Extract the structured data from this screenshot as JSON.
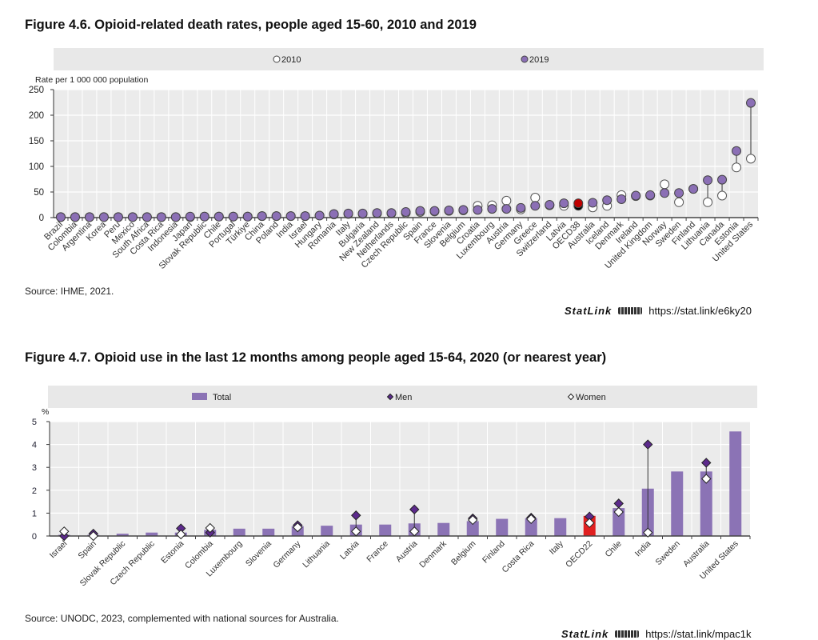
{
  "figure1": {
    "title": "Figure 4.6. Opioid-related death rates, people aged 15-60, 2010 and 2019",
    "source": "Source: IHME, 2021.",
    "statlink_label": "StatLink",
    "statlink_url": "https://stat.link/e6ky20"
  },
  "figure2": {
    "title": "Figure 4.7. Opioid use in the last 12 months among people aged 15-64, 2020 (or nearest year)",
    "source": "Source: UNODC, 2023, complemented with national sources for Australia.",
    "statlink_label": "StatLink",
    "statlink_url": "https://stat.link/mpac1k"
  },
  "chart_data": [
    {
      "type": "scatter",
      "ylabel": "Rate per 1 000 000 population",
      "ylim": [
        0,
        250
      ],
      "yticks": [
        0,
        50,
        100,
        150,
        200,
        250
      ],
      "grid": true,
      "legend_position": "top",
      "highlight": "OECD38",
      "colors": {
        "2010": "#ffffff",
        "2019": "#8b6fb5",
        "highlight_2019": "#c00000",
        "highlight_2010": "#000000"
      },
      "categories": [
        "Brazil",
        "Colombia",
        "Argentina",
        "Korea",
        "Peru",
        "Mexico",
        "South Africa",
        "Costa Rica",
        "Indonesia",
        "Japan",
        "Slovak Republic",
        "Chile",
        "Portugal",
        "Türkiye",
        "China",
        "Poland",
        "India",
        "Israel",
        "Hungary",
        "Romania",
        "Italy",
        "Bulgaria",
        "New Zealand",
        "Netherlands",
        "Czech Republic",
        "Spain",
        "France",
        "Slovenia",
        "Belgium",
        "Croatia",
        "Luxembourg",
        "Austria",
        "Germany",
        "Greece",
        "Switzerland",
        "Latvia",
        "OECD38",
        "Australia",
        "Iceland",
        "Denmark",
        "Ireland",
        "United Kingdom",
        "Norway",
        "Sweden",
        "Finland",
        "Lithuania",
        "Canada",
        "Estonia",
        "United States"
      ],
      "series": [
        {
          "name": "2010",
          "values": [
            1,
            1,
            1,
            1,
            1,
            1,
            1,
            1,
            1,
            1,
            2,
            2,
            2,
            2,
            3,
            3,
            3,
            3,
            4,
            6,
            7,
            7,
            8,
            8,
            9,
            11,
            12,
            13,
            14,
            23,
            24,
            33,
            16,
            39,
            24,
            23,
            23,
            20,
            23,
            44,
            42,
            43,
            65,
            30,
            56,
            30,
            43,
            98,
            115
          ]
        },
        {
          "name": "2019",
          "values": [
            1,
            1,
            1,
            1,
            1,
            1,
            1,
            1,
            1,
            2,
            2,
            2,
            2,
            2,
            3,
            3,
            3,
            3,
            4,
            7,
            8,
            8,
            9,
            9,
            11,
            13,
            13,
            14,
            15,
            15,
            17,
            17,
            19,
            23,
            25,
            28,
            28,
            29,
            34,
            36,
            43,
            44,
            48,
            48,
            56,
            73,
            74,
            130,
            224
          ]
        }
      ]
    },
    {
      "type": "bar",
      "ylabel": "%",
      "ylim": [
        0,
        5
      ],
      "yticks": [
        0,
        1,
        2,
        3,
        4,
        5
      ],
      "grid": true,
      "legend_position": "top",
      "highlight": "OECD22",
      "colors": {
        "Total": "#8b73b5",
        "Men": "#5c2a8c",
        "Women": "#ffffff",
        "highlight": "#e02020"
      },
      "categories": [
        "Israel",
        "Spain",
        "Slovak Republic",
        "Czech Republic",
        "Estonia",
        "Colombia",
        "Luxembourg",
        "Slovenia",
        "Germany",
        "Lithuania",
        "Latvia",
        "France",
        "Austria",
        "Denmark",
        "Belgium",
        "Finland",
        "Costa Rica",
        "Italy",
        "OECD22",
        "Chile",
        "India",
        "Sweden",
        "Australia",
        "United States"
      ],
      "series": [
        {
          "name": "Total",
          "values": [
            0.05,
            0.05,
            0.1,
            0.15,
            0.15,
            0.27,
            0.32,
            0.32,
            0.43,
            0.45,
            0.5,
            0.5,
            0.55,
            0.57,
            0.65,
            0.75,
            0.78,
            0.78,
            0.88,
            1.22,
            2.07,
            2.82,
            2.82,
            4.57
          ]
        },
        {
          "name": "Men",
          "values": [
            0.0,
            0.1,
            null,
            null,
            0.33,
            0.15,
            null,
            null,
            0.47,
            null,
            0.9,
            null,
            1.16,
            null,
            0.77,
            null,
            0.8,
            null,
            0.85,
            1.42,
            4.0,
            null,
            3.2,
            null
          ]
        },
        {
          "name": "Women",
          "values": [
            0.2,
            0.0,
            null,
            null,
            0.07,
            0.35,
            null,
            null,
            0.38,
            null,
            0.2,
            null,
            0.2,
            null,
            0.7,
            null,
            0.74,
            null,
            0.57,
            1.05,
            0.15,
            null,
            2.5,
            null
          ]
        }
      ]
    }
  ]
}
